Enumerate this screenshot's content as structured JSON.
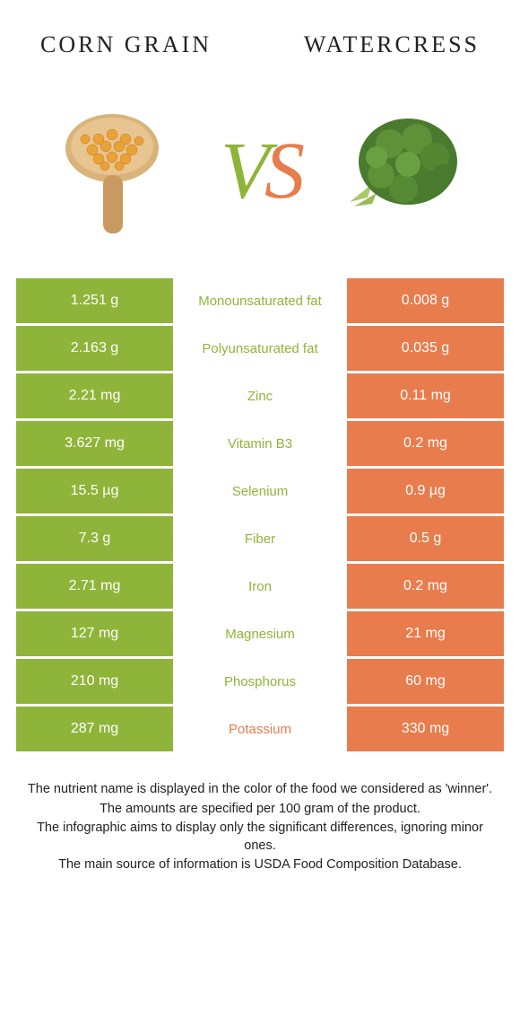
{
  "colors": {
    "left": "#8fb43a",
    "right": "#e87c4d",
    "text": "#232323"
  },
  "header": {
    "left_title": "CORN GRAIN",
    "right_title": "WATERCRESS"
  },
  "vs": {
    "v": "V",
    "s": "S"
  },
  "rows": [
    {
      "left": "1.251 g",
      "label": "Monounsaturated fat",
      "right": "0.008 g",
      "winner": "left"
    },
    {
      "left": "2.163 g",
      "label": "Polyunsaturated fat",
      "right": "0.035 g",
      "winner": "left"
    },
    {
      "left": "2.21 mg",
      "label": "Zinc",
      "right": "0.11 mg",
      "winner": "left"
    },
    {
      "left": "3.627 mg",
      "label": "Vitamin B3",
      "right": "0.2 mg",
      "winner": "left"
    },
    {
      "left": "15.5 µg",
      "label": "Selenium",
      "right": "0.9 µg",
      "winner": "left"
    },
    {
      "left": "7.3 g",
      "label": "Fiber",
      "right": "0.5 g",
      "winner": "left"
    },
    {
      "left": "2.71 mg",
      "label": "Iron",
      "right": "0.2 mg",
      "winner": "left"
    },
    {
      "left": "127 mg",
      "label": "Magnesium",
      "right": "21 mg",
      "winner": "left"
    },
    {
      "left": "210 mg",
      "label": "Phosphorus",
      "right": "60 mg",
      "winner": "left"
    },
    {
      "left": "287 mg",
      "label": "Potassium",
      "right": "330 mg",
      "winner": "right"
    }
  ],
  "notes": {
    "line1": "The nutrient name is displayed in the color of the food we considered as 'winner'.",
    "line2": "The amounts are specified per 100 gram of the product.",
    "line3": "The infographic aims to display only the significant differences, ignoring minor ones.",
    "line4": "The main source of information is USDA Food Composition Database."
  }
}
